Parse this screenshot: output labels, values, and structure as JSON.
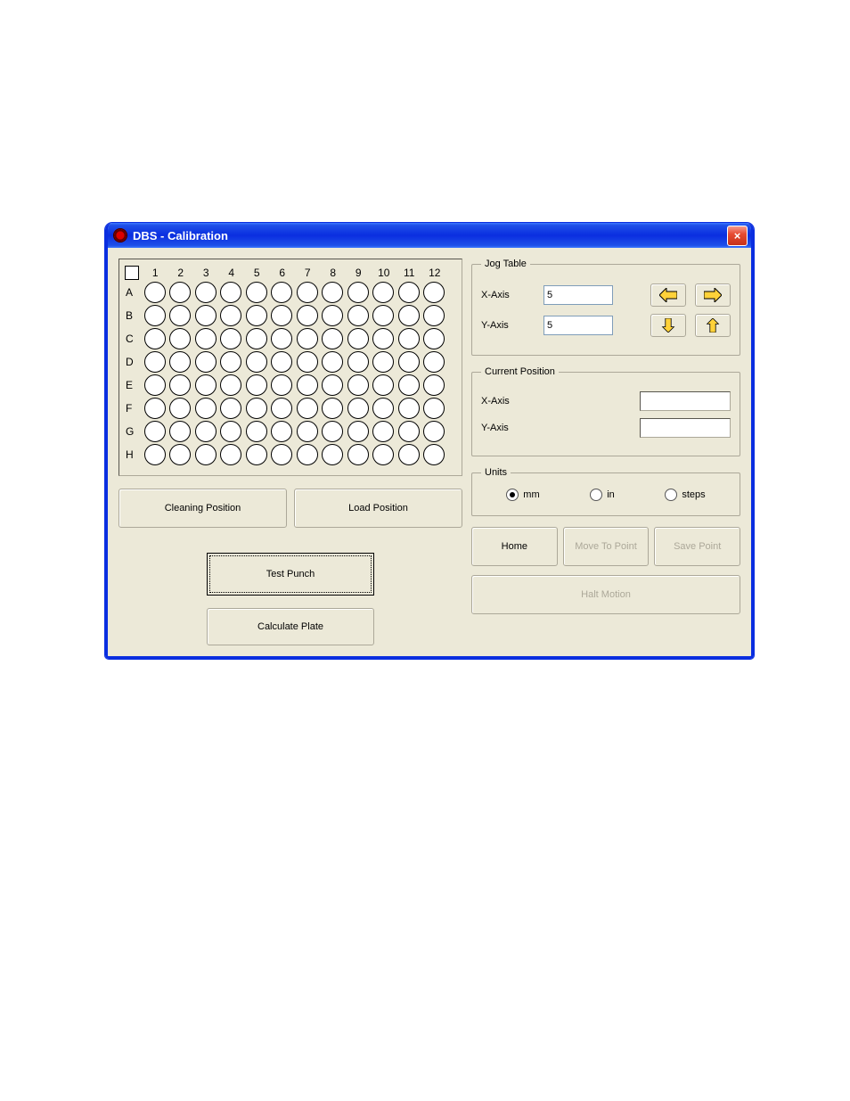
{
  "window": {
    "title": "DBS  - Calibration",
    "close_icon": "×"
  },
  "plate": {
    "columns": [
      "1",
      "2",
      "3",
      "4",
      "5",
      "6",
      "7",
      "8",
      "9",
      "10",
      "11",
      "12"
    ],
    "rows": [
      "A",
      "B",
      "C",
      "D",
      "E",
      "F",
      "G",
      "H"
    ],
    "well_border_color": "#000000",
    "well_fill_color": "#ffffff"
  },
  "buttons": {
    "cleaning_position": "Cleaning Position",
    "load_position": "Load Position",
    "test_punch": "Test Punch",
    "calculate_plate": "Calculate Plate",
    "home": "Home",
    "move_to_point": "Move To Point",
    "save_point": "Save Point",
    "halt_motion": "Halt Motion"
  },
  "jog_table": {
    "legend": "Jog Table",
    "x_label": "X-Axis",
    "y_label": "Y-Axis",
    "x_value": "5",
    "y_value": "5",
    "arrow_fill": "#ffd23a",
    "arrow_stroke": "#000000"
  },
  "current_position": {
    "legend": "Current Position",
    "x_label": "X-Axis",
    "y_label": "Y-Axis",
    "x_value": "",
    "y_value": ""
  },
  "units": {
    "legend": "Units",
    "options": [
      "mm",
      "in",
      "steps"
    ],
    "selected": "mm"
  },
  "colors": {
    "window_border": "#0a2ee0",
    "client_bg": "#ece9d8",
    "border_gray": "#aca899",
    "disabled_text": "#aca899"
  }
}
